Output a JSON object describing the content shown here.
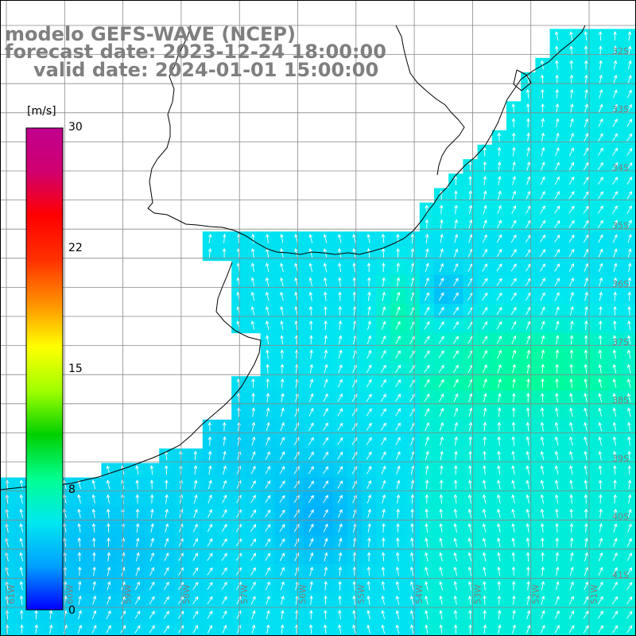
{
  "header": {
    "model": "modelo GEFS-WAVE (NCEP)",
    "forecast": "forecast date: 2023-12-24 18:00:00",
    "valid": "valid date: 2024-01-01 15:00:00"
  },
  "colorbar": {
    "unit": "[m/s]",
    "ticks": [
      "30",
      "22",
      "15",
      "8",
      "0"
    ],
    "tick_values": [
      30,
      22,
      15,
      8,
      0
    ],
    "vmin": 0,
    "vmax": 30,
    "colors": [
      "#0000ff",
      "#00a0ff",
      "#00e8f0",
      "#00ff90",
      "#00d000",
      "#a0ff00",
      "#ffff00",
      "#ff9000",
      "#ff3000",
      "#ff0000",
      "#d0006f",
      "#c0008f"
    ]
  },
  "map": {
    "field": "wind speed and direction",
    "lon_labels": [
      "61W",
      "60W",
      "59W",
      "58W",
      "57W",
      "56W",
      "55W",
      "54W",
      "53W",
      "52W",
      "51W",
      "50W"
    ],
    "lat_labels": [
      "32S",
      "33S",
      "34S",
      "35S",
      "36S",
      "37S",
      "38S",
      "39S",
      "40S",
      "41S"
    ],
    "colors": {
      "land": "#ffffff",
      "coast": "#000000",
      "grid": "#888888",
      "arrow": "#ffffff",
      "label": "#7f7f7f"
    }
  }
}
